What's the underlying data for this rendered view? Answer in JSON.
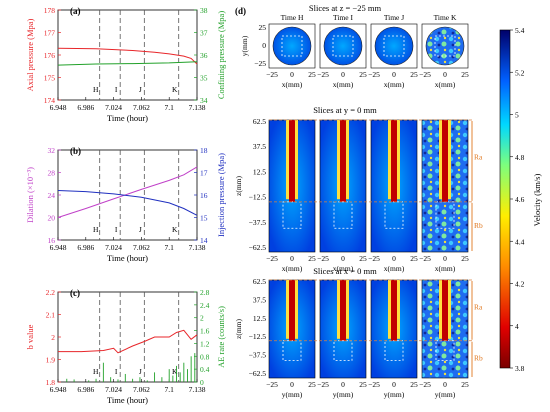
{
  "figure_labels": {
    "a": "(a)",
    "b": "(b)",
    "c": "(c)",
    "d": "(d)"
  },
  "time_marks": [
    "H",
    "I",
    "J",
    "K"
  ],
  "chart_data": [
    {
      "type": "line",
      "panel": "(a)",
      "xlabel": "Time (hour)",
      "xlim": [
        6.948,
        7.138
      ],
      "xticks": [
        "6.948",
        "6.986",
        "7.024",
        "7.062",
        "7.1",
        "7.138"
      ],
      "y_left": {
        "label": "Axial pressure (Mpa)",
        "lim": [
          174,
          178
        ],
        "ticks": [
          "174",
          "175",
          "176",
          "177",
          "178"
        ],
        "color": "#e8262a"
      },
      "y_right": {
        "label": "Confining pressure (Mpa)",
        "lim": [
          34,
          38
        ],
        "ticks": [
          "34",
          "35",
          "36",
          "37",
          "38"
        ],
        "color": "#22a12a"
      },
      "vlines": [
        7.005,
        7.033,
        7.066,
        7.113
      ],
      "series": [
        {
          "axis": "left",
          "x": [
            6.948,
            7.0,
            7.05,
            7.08,
            7.1,
            7.12,
            7.13,
            7.138
          ],
          "y": [
            176.3,
            176.28,
            176.2,
            176.12,
            176.05,
            175.95,
            175.85,
            175.6
          ]
        },
        {
          "axis": "right",
          "x": [
            6.948,
            7.0,
            7.05,
            7.1,
            7.138
          ],
          "y": [
            35.55,
            35.6,
            35.62,
            35.65,
            35.7
          ]
        }
      ]
    },
    {
      "type": "line",
      "panel": "(b)",
      "xlabel": "Time (hour)",
      "xlim": [
        6.948,
        7.138
      ],
      "xticks": [
        "6.948",
        "6.986",
        "7.024",
        "7.062",
        "7.1",
        "7.138"
      ],
      "y_left": {
        "label": "Dilation (×10⁻³)",
        "lim": [
          16,
          32
        ],
        "ticks": [
          "16",
          "20",
          "24",
          "28",
          "32"
        ],
        "color": "#c040c8"
      },
      "y_right": {
        "label": "Injection pressure (Mpa)",
        "lim": [
          14,
          18
        ],
        "ticks": [
          "14",
          "15",
          "16",
          "17",
          "18"
        ],
        "color": "#2030c0"
      },
      "vlines": [
        7.005,
        7.033,
        7.066,
        7.113
      ],
      "series": [
        {
          "axis": "left",
          "x": [
            6.948,
            6.986,
            7.024,
            7.062,
            7.1,
            7.12,
            7.138
          ],
          "y": [
            20.0,
            21.6,
            23.3,
            25.0,
            26.6,
            27.6,
            29.0
          ]
        },
        {
          "axis": "right",
          "x": [
            6.948,
            6.986,
            7.024,
            7.062,
            7.1,
            7.12,
            7.138
          ],
          "y": [
            16.2,
            16.15,
            16.05,
            15.9,
            15.65,
            15.4,
            15.1
          ]
        }
      ]
    },
    {
      "type": "line",
      "panel": "(c)",
      "xlabel": "Time (hour)",
      "xlim": [
        6.948,
        7.138
      ],
      "xticks": [
        "6.948",
        "6.986",
        "7.024",
        "7.062",
        "7.1",
        "7.138"
      ],
      "y_left": {
        "label": "b value",
        "lim": [
          1.8,
          2.2
        ],
        "ticks": [
          "1.8",
          "1.9",
          "2",
          "2.1",
          "2.2"
        ],
        "color": "#e8262a"
      },
      "y_right": {
        "label": "AE rate (counts/s)",
        "lim": [
          0,
          2.8
        ],
        "ticks": [
          "0",
          "0.4",
          "0.8",
          "1.2",
          "1.6",
          "2",
          "2.4",
          "2.8"
        ],
        "color": "#22a12a"
      },
      "vlines": [
        7.005,
        7.033,
        7.066,
        7.113
      ],
      "series": [
        {
          "axis": "left",
          "x": [
            6.948,
            6.98,
            7.01,
            7.024,
            7.03,
            7.05,
            7.066,
            7.08,
            7.1,
            7.11,
            7.12,
            7.13,
            7.138
          ],
          "y": [
            1.935,
            1.935,
            1.94,
            1.95,
            1.93,
            1.96,
            1.98,
            2.0,
            2.0,
            2.02,
            2.03,
            1.99,
            2.01
          ]
        },
        {
          "axis": "right",
          "x": [
            6.96,
            6.97,
            6.99,
            7.0,
            7.01,
            7.02,
            7.03,
            7.04,
            7.05,
            7.06,
            7.07,
            7.08,
            7.09,
            7.1,
            7.105,
            7.11,
            7.115,
            7.12,
            7.125,
            7.13,
            7.135
          ],
          "y": [
            0.1,
            0.08,
            0.05,
            0.1,
            0.6,
            0.15,
            0.08,
            0.25,
            0.1,
            0.15,
            0.05,
            0.3,
            0.15,
            0.4,
            0.2,
            0.5,
            0.3,
            0.6,
            0.4,
            0.8,
            0.9
          ]
        }
      ]
    }
  ],
  "panel_d": {
    "row_titles": [
      "Slices at z = −25 mm",
      "Slices at y = 0 mm",
      "Slices at x = 0 mm"
    ],
    "time_titles": [
      "Time H",
      "Time I",
      "Time J",
      "Time K"
    ],
    "row_xlabels": [
      "x(mm)",
      "x(mm)",
      "y(mm)"
    ],
    "row_ylabels": [
      "y(mm)",
      "z(mm)",
      "z(mm)"
    ],
    "x_ticks": [
      "−25",
      "0",
      "25"
    ],
    "y_ticks_top": [
      "25",
      "0",
      "−25"
    ],
    "z_ticks": [
      "62.5",
      "37.5",
      "12.5",
      "−12.5",
      "−37.5",
      "−62.5"
    ],
    "region_labels": [
      "Ra",
      "Rb"
    ],
    "colorbar": {
      "label": "Velocity (km/s)",
      "ticks": [
        "5.4",
        "5.2",
        "5",
        "4.8",
        "4.6",
        "4.4",
        "4.2",
        "4",
        "3.8"
      ],
      "lim": [
        3.8,
        5.4
      ]
    }
  }
}
